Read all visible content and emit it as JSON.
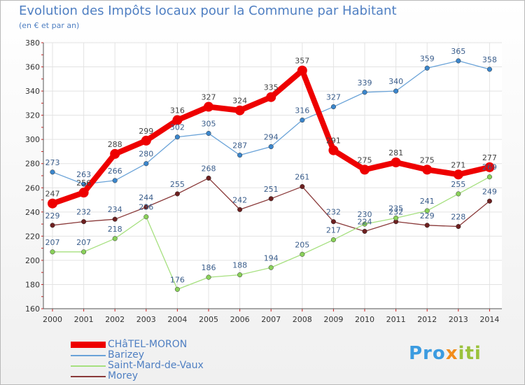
{
  "chart_data": {
    "type": "line",
    "title": "Evolution des Impôts locaux pour la Commune par Habitant",
    "subtitle": "(en € et par an)",
    "x": [
      "2000",
      "2001",
      "2002",
      "2003",
      "2004",
      "2005",
      "2006",
      "2007",
      "2008",
      "2009",
      "2010",
      "2011",
      "2012",
      "2013",
      "2014"
    ],
    "ylim": [
      160,
      380
    ],
    "yticks": [
      160,
      180,
      200,
      220,
      240,
      260,
      280,
      300,
      320,
      340,
      360,
      380
    ],
    "grid": true,
    "legend_position": "bottom-left",
    "series": [
      {
        "name": "CHâTEL-MORON",
        "color": "#ee0000",
        "marker": "#ee0000",
        "label_color": "#444444",
        "values": [
          247,
          256,
          288,
          299,
          316,
          327,
          324,
          335,
          357,
          291,
          275,
          281,
          275,
          271,
          277
        ]
      },
      {
        "name": "Barizey",
        "color": "#6aa3d8",
        "marker": "#3b86cc",
        "label_color": "#3b5e8c",
        "values": [
          273,
          263,
          266,
          280,
          302,
          305,
          287,
          294,
          316,
          327,
          339,
          340,
          359,
          365,
          358
        ]
      },
      {
        "name": "Saint-Mard-de-Vaux",
        "color": "#a6e07f",
        "marker": "#8ad15a",
        "label_color": "#3b5e8c",
        "values": [
          207,
          207,
          218,
          236,
          176,
          186,
          188,
          194,
          205,
          217,
          230,
          235,
          241,
          255,
          269
        ]
      },
      {
        "name": "Morey",
        "color": "#8a3a3a",
        "marker": "#6d2020",
        "label_color": "#3b5e8c",
        "values": [
          229,
          232,
          234,
          244,
          255,
          268,
          242,
          251,
          261,
          232,
          224,
          232,
          229,
          228,
          249
        ]
      }
    ]
  },
  "logo": {
    "part1": "Pro",
    "part2": "x",
    "part3": "iti"
  }
}
